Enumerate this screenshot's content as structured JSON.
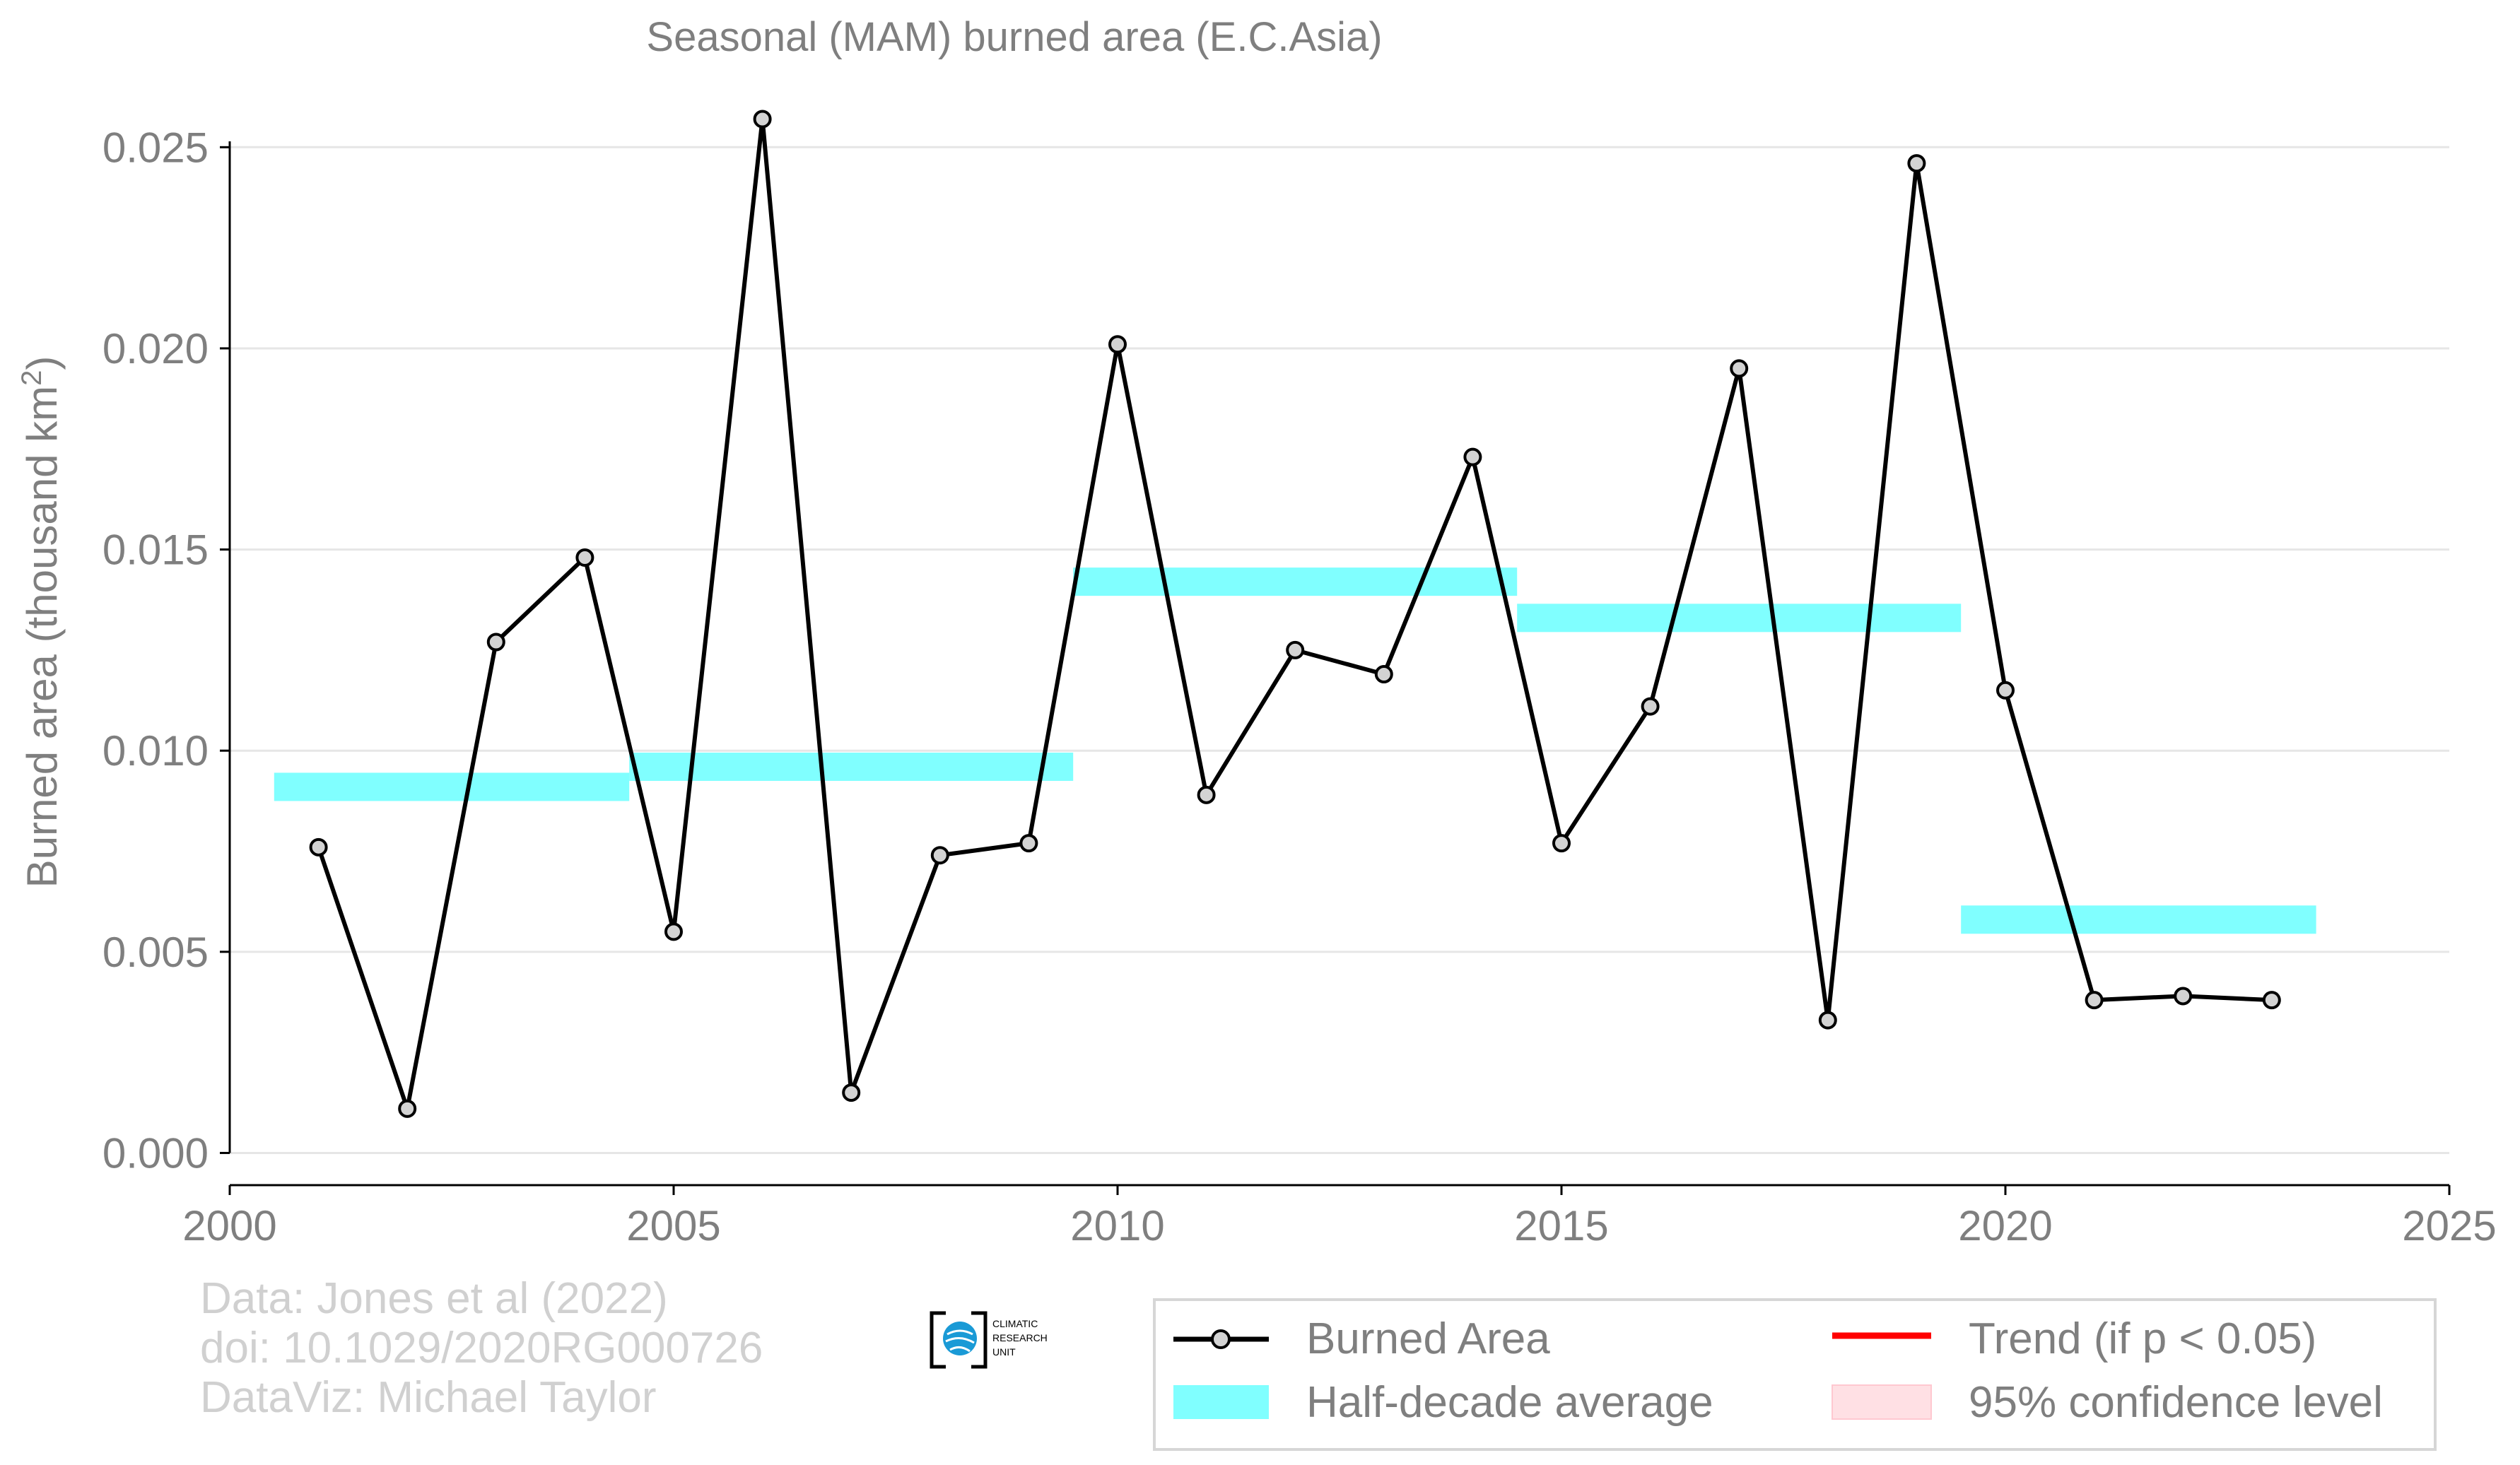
{
  "chart_data": {
    "type": "line",
    "title": "Seasonal (MAM) burned area (E.C.Asia)",
    "xlabel": "",
    "ylabel": "Burned area (thousand km",
    "ylabel_superscript": "2",
    "ylabel_close": ")",
    "xlim": [
      2000,
      2025
    ],
    "ylim": [
      -0.0008,
      0.0262
    ],
    "x_ticks": [
      2000,
      2005,
      2010,
      2015,
      2020,
      2025
    ],
    "x_tick_labels": [
      "2000",
      "2005",
      "2010",
      "2015",
      "2020",
      "2025"
    ],
    "y_ticks": [
      0,
      0.005,
      0.01,
      0.015,
      0.02,
      0.025
    ],
    "y_tick_labels": [
      "0.000",
      "0.005",
      "0.010",
      "0.015",
      "0.020",
      "0.025"
    ],
    "grid": "horizontal",
    "legend_position": "bottom-right",
    "series": [
      {
        "name": "Burned Area",
        "color": "#000000",
        "marker_fill": "#d3d3d3",
        "x": [
          2001,
          2002,
          2003,
          2004,
          2005,
          2006,
          2007,
          2008,
          2009,
          2010,
          2011,
          2012,
          2013,
          2014,
          2015,
          2016,
          2017,
          2018,
          2019,
          2020,
          2021,
          2022,
          2023
        ],
        "y": [
          0.0076,
          0.0011,
          0.0127,
          0.0148,
          0.0055,
          0.0257,
          0.0015,
          0.0074,
          0.0077,
          0.0201,
          0.0089,
          0.0125,
          0.0119,
          0.0173,
          0.0077,
          0.0111,
          0.0195,
          0.0033,
          0.0246,
          0.0115,
          0.0038,
          0.0039,
          0.0038
        ]
      }
    ],
    "half_decade_average": {
      "name": "Half-decade average",
      "color": "#80ffff",
      "segments": [
        {
          "x_start": 2000.5,
          "x_end": 2004.5,
          "y": 0.0091
        },
        {
          "x_start": 2004.5,
          "x_end": 2009.5,
          "y": 0.0096
        },
        {
          "x_start": 2009.5,
          "x_end": 2014.5,
          "y": 0.0142
        },
        {
          "x_start": 2014.5,
          "x_end": 2019.5,
          "y": 0.0133
        },
        {
          "x_start": 2019.5,
          "x_end": 2023.5,
          "y": 0.0058
        }
      ]
    },
    "legend": [
      {
        "label": "Burned Area",
        "kind": "line-marker",
        "color": "#000000"
      },
      {
        "label": "Trend (if p < 0.05)",
        "kind": "line",
        "color": "#ff0000"
      },
      {
        "label": "Half-decade average",
        "kind": "band",
        "color": "#80ffff"
      },
      {
        "label": "95% confidence level",
        "kind": "band",
        "color": "#ffe0e4"
      }
    ]
  },
  "credits": {
    "line1": "Data: Jones et al (2022)",
    "line2": "doi: 10.1029/2020RG000726",
    "line3": "DataViz: Michael Taylor"
  },
  "logo": {
    "name": "cru-logo-icon",
    "lines": [
      "CLIMATIC",
      "RESEARCH",
      "UNIT"
    ]
  }
}
